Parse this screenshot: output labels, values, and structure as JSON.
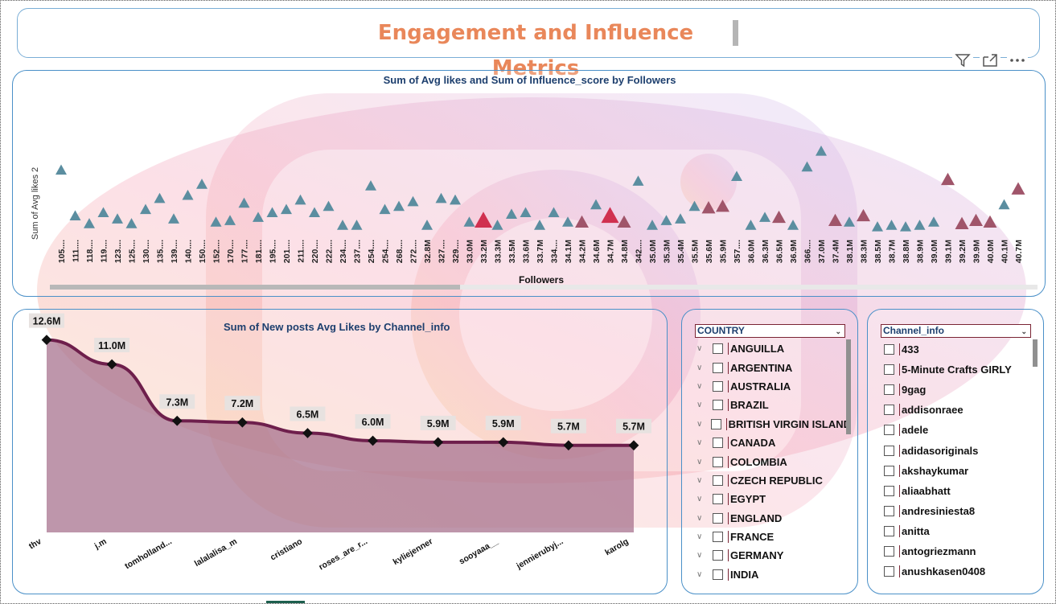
{
  "title": "Engagement and Influence Metrics",
  "colors": {
    "accent": "#e9875a",
    "panel_border": "#4a90c8",
    "title_text": "#1d3f6e",
    "triangle_default": "#5b8ea0",
    "triangle_mid": "#a0556a",
    "triangle_high": "#d0304f",
    "area_fill": "#a56d8a",
    "line": "#6e1f4c",
    "slicer_border": "#7a2434"
  },
  "toolbar": {
    "icons": [
      "filter-icon",
      "focus-mode-icon",
      "more-options-icon"
    ]
  },
  "scatter": {
    "title": "Sum of Avg likes and Sum of Influence_score by Followers",
    "ylabel": "Sum of Avg likes 2",
    "xlabel": "Followers",
    "tick_labels": [
      "105....",
      "111....",
      "118....",
      "119....",
      "123....",
      "125....",
      "130....",
      "135....",
      "139....",
      "140....",
      "150....",
      "152....",
      "170....",
      "177....",
      "181....",
      "195....",
      "201....",
      "211....",
      "220....",
      "222....",
      "234....",
      "237....",
      "254....",
      "254....",
      "268....",
      "272....",
      "32.8M",
      "327....",
      "329....",
      "33.0M",
      "33.2M",
      "33.3M",
      "33.5M",
      "33.6M",
      "33.7M",
      "334....",
      "34.1M",
      "34.2M",
      "34.6M",
      "34.7M",
      "34.8M",
      "342....",
      "35.0M",
      "35.3M",
      "35.4M",
      "35.5M",
      "35.6M",
      "35.9M",
      "357....",
      "36.0M",
      "36.3M",
      "36.5M",
      "36.9M",
      "366....",
      "37.0M",
      "37.4M",
      "38.1M",
      "38.3M",
      "38.5M",
      "38.7M",
      "38.8M",
      "38.9M",
      "39.0M",
      "39.1M",
      "39.2M",
      "39.9M",
      "40.0M",
      "40.1M",
      "40.7M"
    ]
  },
  "chart_data": [
    {
      "type": "scatter",
      "title": "Sum of Avg likes and Sum of Influence_score by Followers",
      "xlabel": "Followers",
      "ylabel": "Sum of Avg likes 2",
      "categories": [
        "105....",
        "111....",
        "118....",
        "119....",
        "123....",
        "125....",
        "130....",
        "135....",
        "139....",
        "140....",
        "150....",
        "152....",
        "170....",
        "177....",
        "181....",
        "195....",
        "201....",
        "211....",
        "220....",
        "222....",
        "234....",
        "237....",
        "254....",
        "254....",
        "268....",
        "272....",
        "32.8M",
        "327....",
        "329....",
        "33.0M",
        "33.2M",
        "33.3M",
        "33.5M",
        "33.6M",
        "33.7M",
        "334....",
        "34.1M",
        "34.2M",
        "34.6M",
        "34.7M",
        "34.8M",
        "342....",
        "35.0M",
        "35.3M",
        "35.4M",
        "35.5M",
        "35.6M",
        "35.9M",
        "357....",
        "36.0M",
        "36.3M",
        "36.5M",
        "36.9M",
        "366....",
        "37.0M",
        "37.4M",
        "38.1M",
        "38.3M",
        "38.5M",
        "38.7M",
        "38.8M",
        "38.9M",
        "39.0M",
        "39.1M",
        "39.2M",
        "39.9M",
        "40.0M",
        "40.1M",
        "40.7M"
      ],
      "values": [
        76,
        18,
        8,
        22,
        14,
        8,
        26,
        40,
        14,
        44,
        58,
        10,
        12,
        34,
        16,
        22,
        26,
        38,
        22,
        30,
        6,
        6,
        56,
        26,
        30,
        36,
        6,
        40,
        38,
        10,
        12,
        6,
        20,
        22,
        6,
        22,
        10,
        10,
        32,
        18,
        10,
        62,
        6,
        12,
        14,
        30,
        28,
        30,
        68,
        6,
        16,
        16,
        6,
        80,
        100,
        12,
        10,
        18,
        4,
        6,
        4,
        6,
        10,
        64,
        8,
        12,
        10,
        32,
        52
      ],
      "influence": [
        0,
        0,
        0,
        0,
        0,
        0,
        0,
        0,
        0,
        0,
        0,
        0,
        0,
        0,
        0,
        0,
        0,
        0,
        0,
        0,
        0,
        0,
        0,
        0,
        0,
        0,
        0,
        0,
        0,
        0,
        2,
        0,
        0,
        0,
        0,
        0,
        0,
        1,
        0,
        2,
        1,
        0,
        0,
        0,
        0,
        0,
        1,
        1,
        0,
        0,
        0,
        1,
        0,
        0,
        0,
        1,
        0,
        1,
        0,
        0,
        0,
        0,
        0,
        1,
        1,
        1,
        1,
        0,
        1
      ],
      "ylim": [
        0,
        100
      ]
    },
    {
      "type": "area",
      "title": "Sum of New posts Avg Likes by Channel_info",
      "categories": [
        "thv",
        "j.m",
        "tomholland...",
        "lalalalisa_m",
        "cristiano",
        "roses_are_r...",
        "kyliejenner",
        "sooyaaa__",
        "jennierubyj...",
        "karolg"
      ],
      "values": [
        12.6,
        11.0,
        7.3,
        7.2,
        6.5,
        6.0,
        5.9,
        5.9,
        5.7,
        5.7
      ],
      "labels": [
        "12.6M",
        "11.0M",
        "7.3M",
        "7.2M",
        "6.5M",
        "6.0M",
        "5.9M",
        "5.9M",
        "5.7M",
        "5.7M"
      ],
      "ylim": [
        0,
        13
      ]
    }
  ],
  "combo": {
    "title": "Sum of New posts Avg Likes by Channel_info"
  },
  "country_slicer": {
    "header": "COUNTRY",
    "items": [
      "ANGUILLA",
      "ARGENTINA",
      "AUSTRALIA",
      "BRAZIL",
      "BRITISH VIRGIN ISLAND",
      "CANADA",
      "COLOMBIA",
      "CZECH REPUBLIC",
      "EGYPT",
      "ENGLAND",
      "FRANCE",
      "GERMANY",
      "INDIA"
    ]
  },
  "channel_slicer": {
    "header": "Channel_info",
    "items": [
      "433",
      "5-Minute Crafts GIRLY",
      "9gag",
      "addisonraee",
      "adele",
      "adidasoriginals",
      "akshaykumar",
      "aliaabhatt",
      "andresiniesta8",
      "anitta",
      "antogriezmann",
      "anushkasen0408"
    ]
  }
}
